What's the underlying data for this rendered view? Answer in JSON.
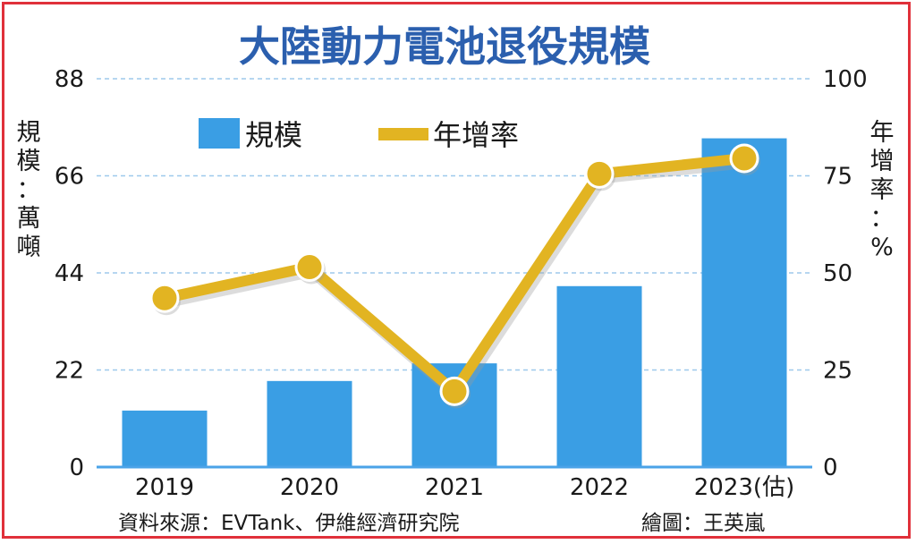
{
  "chart_data": {
    "type": "bar+line",
    "title": "大陸動力電池退役規模",
    "categories": [
      "2019",
      "2020",
      "2021",
      "2022",
      "2023(估)"
    ],
    "series": [
      {
        "name": "規模",
        "kind": "bar",
        "axis": "left",
        "color": "#3a9ee4",
        "values": [
          12.8,
          19.5,
          23.5,
          41.0,
          74.5
        ]
      },
      {
        "name": "年增率",
        "kind": "line",
        "axis": "right",
        "color": "#e2b422",
        "values": [
          43.5,
          51.5,
          19.5,
          75.5,
          79.5
        ]
      }
    ],
    "left_axis": {
      "label": "規模：萬噸",
      "ticks": [
        "0",
        "22",
        "44",
        "66",
        "88"
      ],
      "min": 0,
      "max": 88
    },
    "right_axis": {
      "label": "年增率：%",
      "ticks": [
        "0",
        "25",
        "50",
        "75",
        "100"
      ],
      "min": 0,
      "max": 100
    },
    "legend_placement": "top-left",
    "grid": "horizontal dashed"
  },
  "footer": {
    "source": "資料來源：EVTank、伊維經濟研究院",
    "credit": "繪圖：王英嵐"
  },
  "colors": {
    "border": "#e0303a",
    "title": "#2b5fae",
    "grid": "#9ec9ec"
  }
}
